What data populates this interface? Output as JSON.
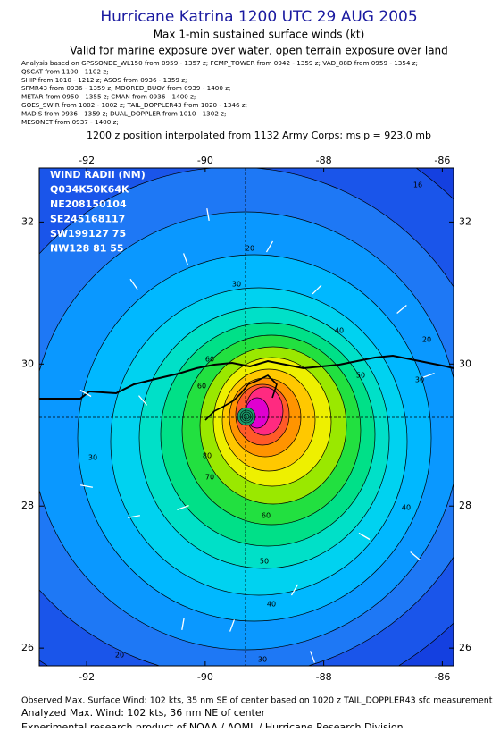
{
  "header": {
    "title": "Hurricane Katrina 1200 UTC 29 AUG 2005",
    "subtitle": "Max 1-min sustained surface winds (kt)",
    "validity": "Valid for marine exposure over water, open terrain exposure over land",
    "analysis_lines": [
      "Analysis based on  GPSSONDE_WL150 from 0959 - 1357 z;  FCMP_TOWER from 0942 - 1359 z;  VAD_88D from 0959 - 1354 z;",
      "QSCAT from 1100 - 1102 z;",
      "SHIP from 1010 - 1212 z;  ASOS from 0936 - 1359 z;",
      "SFMR43 from 0936 - 1359 z;  MOORED_BUOY from 0939 - 1400 z;",
      "METAR from 0950 - 1355 z;  CMAN from 0936 - 1400 z;",
      "GOES_SWIR from 1002 - 1002 z;  TAIL_DOPPLER43 from 1020 - 1346 z;",
      "MADIS from 0936 - 1359 z;  DUAL_DOPPLER from 1010 - 1302 z;",
      "MESONET from 0937 - 1400 z;"
    ],
    "position_note": "1200 z position interpolated from 1132 Army Corps; mslp = 923.0 mb"
  },
  "map": {
    "xlim": [
      -92.8,
      -85.81
    ],
    "ylim": [
      25.75,
      32.76
    ],
    "xticks": [
      -92,
      -90,
      -88,
      -86
    ],
    "yticks": [
      32,
      30,
      28,
      26
    ],
    "wind_radii": [
      "WIND RADII (NM)",
      "Q034K50K64K",
      "NE208150104",
      "SE245168117",
      "SW199127 75",
      "NW128 81 55"
    ],
    "contour_labels": [
      16,
      20,
      30,
      40,
      20,
      50,
      30,
      60,
      60,
      80,
      70,
      30,
      60,
      40,
      50,
      40,
      30,
      20
    ]
  },
  "footer": {
    "observed": "Observed Max. Surface Wind: 102 kts, 35 nm SE of center based on 1020 z TAIL_DOPPLER43 sfc measurement",
    "analyzed": "Analyzed Max. Wind: 102 kts, 36 nm NE of center",
    "credit": "Experimental research product of NOAA / AOML / Hurricane Research Division"
  }
}
